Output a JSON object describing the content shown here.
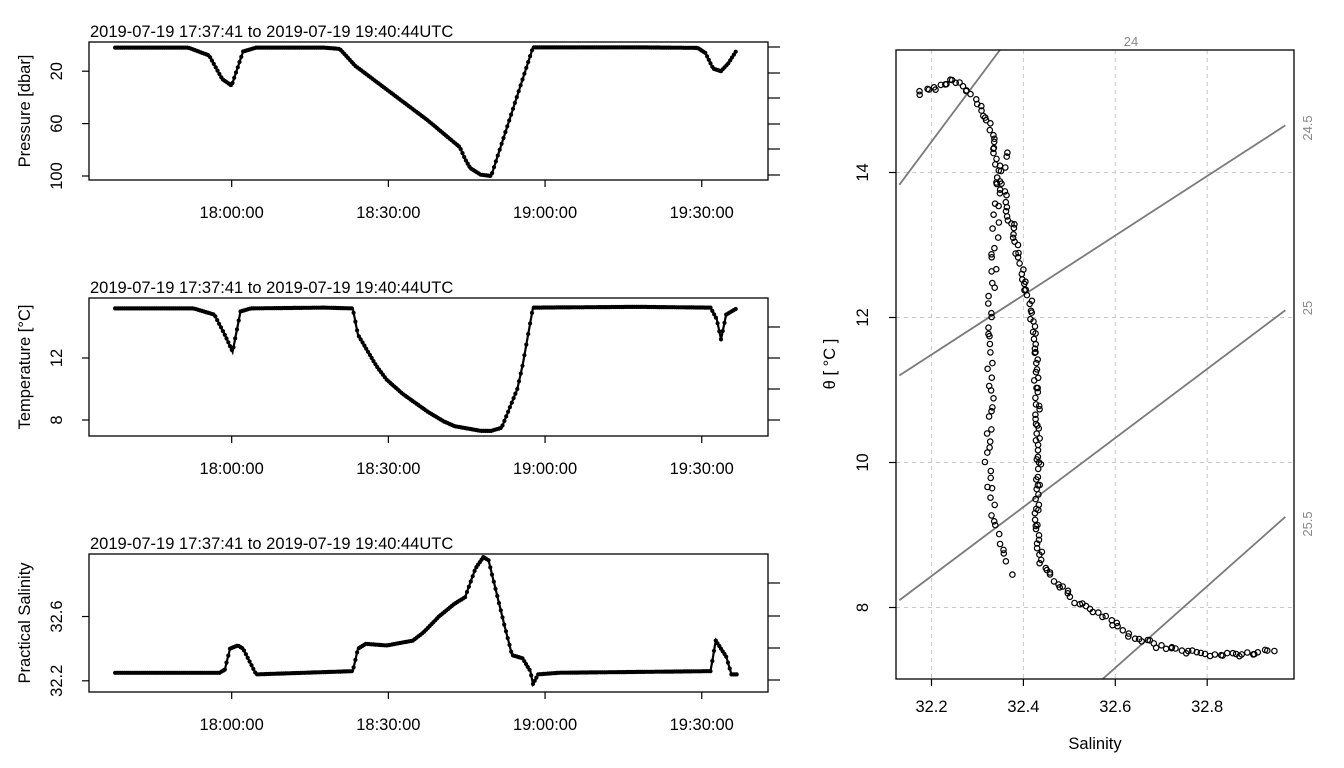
{
  "chart_data": [
    {
      "type": "line",
      "title": "2019-07-19 17:37:41 to 2019-07-19 19:40:44UTC",
      "ylabel": "Pressure [dbar]",
      "xlabel": "",
      "x_ticks": [
        "18:00:00",
        "18:30:00",
        "19:00:00",
        "19:30:00"
      ],
      "y_ticks": [
        "20",
        "60",
        "100"
      ],
      "yreversed": true,
      "ylim": [
        105,
        0
      ],
      "x_unit": "minutes after 17:37:41 UTC",
      "series": [
        {
          "name": "",
          "x": [
            0,
            14,
            18,
            20.5,
            22.3,
            24.5,
            27,
            40,
            43,
            46,
            52,
            56,
            60,
            63,
            66,
            67,
            68,
            70,
            72,
            80,
            100,
            111.5,
            113,
            114.5,
            116,
            117.4,
            119
          ],
          "values": [
            2,
            2,
            8,
            26,
            31,
            5,
            2,
            2,
            3,
            16,
            34,
            46,
            58,
            68,
            78,
            87,
            94,
            99,
            100,
            1.8,
            1.8,
            2.2,
            6,
            18,
            20,
            14,
            4
          ]
        }
      ]
    },
    {
      "type": "line",
      "title": "2019-07-19 17:37:41 to 2019-07-19 19:40:44UTC",
      "ylabel": "Temperature [°C]",
      "xlabel": "",
      "x_ticks": [
        "18:00:00",
        "18:30:00",
        "19:00:00",
        "19:30:00"
      ],
      "y_ticks": [
        "8",
        "12"
      ],
      "ylim": [
        6.9,
        16
      ],
      "x_unit": "minutes after 17:37:41 UTC",
      "series": [
        {
          "name": "",
          "x": [
            0,
            15,
            19,
            21,
            22.5,
            24,
            26,
            40,
            45.5,
            46.5,
            50,
            52,
            55,
            60,
            63,
            65,
            70,
            72,
            74,
            77,
            78,
            80,
            100,
            114,
            115.2,
            116,
            117,
            119
          ],
          "values": [
            15.2,
            15.2,
            14.8,
            13.5,
            12.4,
            15,
            15.2,
            15.25,
            15.2,
            13.5,
            11.5,
            10.6,
            9.7,
            8.5,
            7.9,
            7.6,
            7.3,
            7.3,
            7.5,
            10,
            11.5,
            15.25,
            15.3,
            15.25,
            14.5,
            13.2,
            14.8,
            15.2
          ]
        }
      ]
    },
    {
      "type": "line",
      "title": "2019-07-19 17:37:41 to 2019-07-19 19:40:44UTC",
      "ylabel": "Practical Salinity",
      "xlabel": "",
      "x_ticks": [
        "18:00:00",
        "18:30:00",
        "19:00:00",
        "19:30:00"
      ],
      "y_ticks": [
        "32.2",
        "32.6"
      ],
      "ylim": [
        32.1,
        33.05
      ],
      "x_unit": "minutes after 17:37:41 UTC",
      "series": [
        {
          "name": "",
          "x": [
            0,
            20,
            21,
            22,
            23.5,
            24.5,
            27,
            45.5,
            46.5,
            48,
            52,
            57,
            59,
            62,
            65,
            67,
            69,
            70.5,
            71.5,
            73,
            74.5,
            76,
            78,
            79.5,
            80,
            81,
            85,
            114,
            115,
            116,
            117,
            118,
            119
          ],
          "values": [
            32.25,
            32.25,
            32.27,
            32.4,
            32.42,
            32.4,
            32.24,
            32.26,
            32.4,
            32.43,
            32.42,
            32.45,
            32.5,
            32.6,
            32.68,
            32.72,
            32.9,
            32.97,
            32.95,
            32.75,
            32.55,
            32.36,
            32.34,
            32.26,
            32.18,
            32.24,
            32.25,
            32.26,
            32.45,
            32.4,
            32.35,
            32.24,
            32.24
          ]
        }
      ]
    },
    {
      "type": "scatter",
      "title": "",
      "xlabel": "Salinity",
      "ylabel": "θ [ °C ]",
      "x_ticks": [
        "32.2",
        "32.4",
        "32.6",
        "32.8"
      ],
      "y_ticks": [
        "8",
        "10",
        "12",
        "14"
      ],
      "xlim": [
        32.14,
        32.97
      ],
      "ylim": [
        7.0,
        15.7
      ],
      "grid": true,
      "isopycnal_labels": [
        "24",
        "24.5",
        "25",
        "25.5"
      ],
      "isopycnals": [
        {
          "label": "24",
          "points": [
            [
              32.13,
              13.83
            ],
            [
              32.35,
              15.7
            ]
          ]
        },
        {
          "label": "24.5",
          "points": [
            [
              32.13,
              11.2
            ],
            [
              32.97,
              14.65
            ]
          ]
        },
        {
          "label": "25",
          "points": [
            [
              32.13,
              8.1
            ],
            [
              32.97,
              12.1
            ]
          ]
        },
        {
          "label": "25.5",
          "points": [
            [
              32.57,
              7.0
            ],
            [
              32.97,
              9.25
            ]
          ]
        }
      ],
      "profile_path": [
        [
          32.17,
          15.1
        ],
        [
          32.23,
          15.2
        ],
        [
          32.25,
          15.3
        ],
        [
          32.28,
          15.1
        ],
        [
          32.31,
          14.85
        ],
        [
          32.33,
          14.6
        ],
        [
          32.34,
          14.2
        ],
        [
          32.35,
          13.9
        ],
        [
          32.36,
          13.6
        ],
        [
          32.38,
          13.2
        ],
        [
          32.39,
          12.8
        ],
        [
          32.4,
          12.55
        ],
        [
          32.41,
          12.35
        ],
        [
          32.42,
          12.0
        ],
        [
          32.425,
          11.6
        ],
        [
          32.43,
          11.0
        ],
        [
          32.43,
          10.5
        ],
        [
          32.435,
          10.0
        ],
        [
          32.43,
          9.5
        ],
        [
          32.43,
          9.0
        ],
        [
          32.44,
          8.6
        ],
        [
          32.48,
          8.3
        ],
        [
          32.52,
          8.05
        ],
        [
          32.58,
          7.85
        ],
        [
          32.64,
          7.6
        ],
        [
          32.7,
          7.45
        ],
        [
          32.8,
          7.35
        ],
        [
          32.88,
          7.35
        ],
        [
          32.95,
          7.4
        ]
      ],
      "upcast_path": [
        [
          32.36,
          14.3
        ],
        [
          32.345,
          13.8
        ],
        [
          32.34,
          13.5
        ],
        [
          32.34,
          13.1
        ],
        [
          32.335,
          12.7
        ],
        [
          32.33,
          12.2
        ],
        [
          32.325,
          11.8
        ],
        [
          32.325,
          11.4
        ],
        [
          32.33,
          11.0
        ],
        [
          32.325,
          10.5
        ],
        [
          32.32,
          10.0
        ],
        [
          32.33,
          9.6
        ],
        [
          32.34,
          9.0
        ],
        [
          32.36,
          8.7
        ],
        [
          32.38,
          8.4
        ]
      ]
    }
  ]
}
